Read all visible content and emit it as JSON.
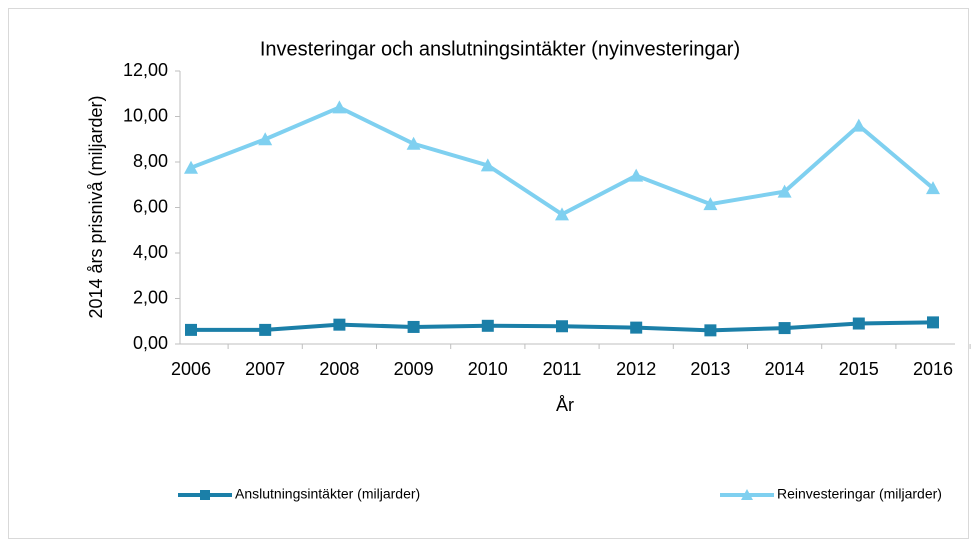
{
  "chart_data": {
    "type": "line",
    "title": "Investeringar och anslutningsintäkter (nyinvesteringar)",
    "x_label": "År",
    "y_label": "2014 års prisnivå (miljarder)",
    "categories": [
      "2006",
      "2007",
      "2008",
      "2009",
      "2010",
      "2011",
      "2012",
      "2013",
      "2014",
      "2015",
      "2016"
    ],
    "series": [
      {
        "name": "Anslutningsintäkter (miljarder)",
        "color": "#1b7fa8",
        "marker": "square",
        "values": [
          0.62,
          0.62,
          0.85,
          0.75,
          0.8,
          0.78,
          0.72,
          0.6,
          0.7,
          0.9,
          0.95
        ]
      },
      {
        "name": "Reinvesteringar (miljarder)",
        "color": "#7fd0f0",
        "marker": "triangle",
        "values": [
          7.75,
          9.0,
          10.4,
          8.8,
          7.85,
          5.7,
          7.4,
          6.15,
          6.7,
          9.6,
          6.85
        ]
      }
    ],
    "ylim": [
      0,
      12
    ],
    "yticks": [
      {
        "value": 0,
        "label": "0,00"
      },
      {
        "value": 2,
        "label": "2,00"
      },
      {
        "value": 4,
        "label": "4,00"
      },
      {
        "value": 6,
        "label": "6,00"
      },
      {
        "value": 8,
        "label": "8,00"
      },
      {
        "value": 10,
        "label": "10,00"
      },
      {
        "value": 12,
        "label": "12,00"
      }
    ],
    "grid": false,
    "legend": "bottom"
  }
}
